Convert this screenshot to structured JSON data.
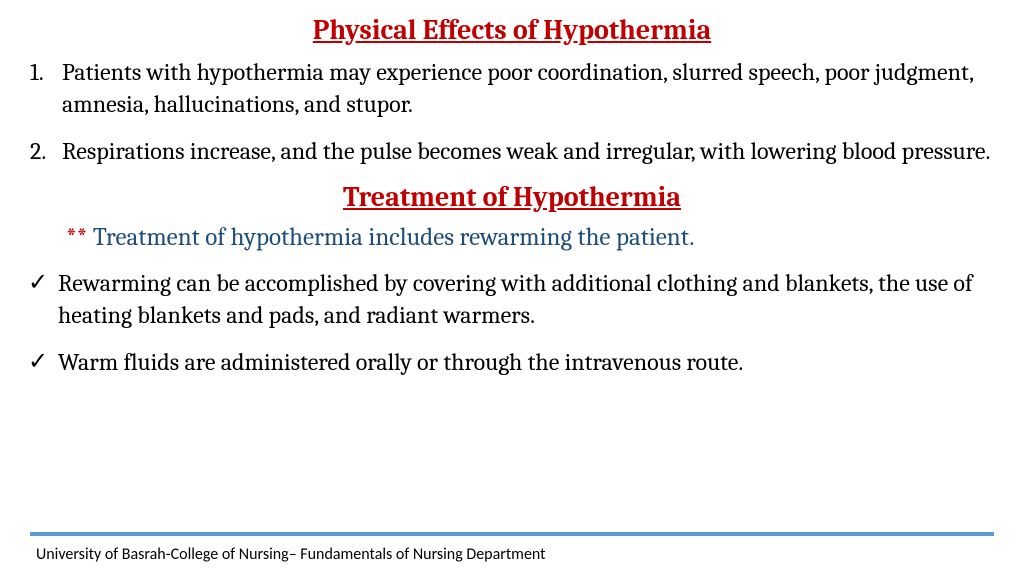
{
  "heading1": "Physical Effects of Hypothermia",
  "list1": {
    "item1_num": "1.",
    "item1_text": "Patients with hypothermia may experience poor coordination, slurred speech, poor judgment, amnesia, hallucinations, and stupor.",
    "item2_num": "2.",
    "item2_text": "Respirations increase, and the pulse becomes weak and irregular, with lowering blood pressure."
  },
  "heading2": " Treatment of Hypothermia",
  "subhead_stars": "** ",
  "subhead_text": "Treatment of hypothermia includes rewarming the patient.",
  "check1": "Rewarming can be accomplished by covering with additional clothing and blankets, the use of heating blankets and pads, and radiant warmers.",
  "check2": " Warm fluids are administered orally or through the intravenous route.",
  "checkmark": "✓",
  "footer": "University of Basrah-College of Nursing– Fundamentals of Nursing Department",
  "style": {
    "heading_color": "#c00000",
    "subhead_color": "#1f4e79",
    "body_color": "#000000",
    "line_color": "#5b9bd5",
    "background": "#ffffff",
    "heading_fontsize": 28,
    "body_fontsize": 24,
    "footer_fontsize": 16
  }
}
